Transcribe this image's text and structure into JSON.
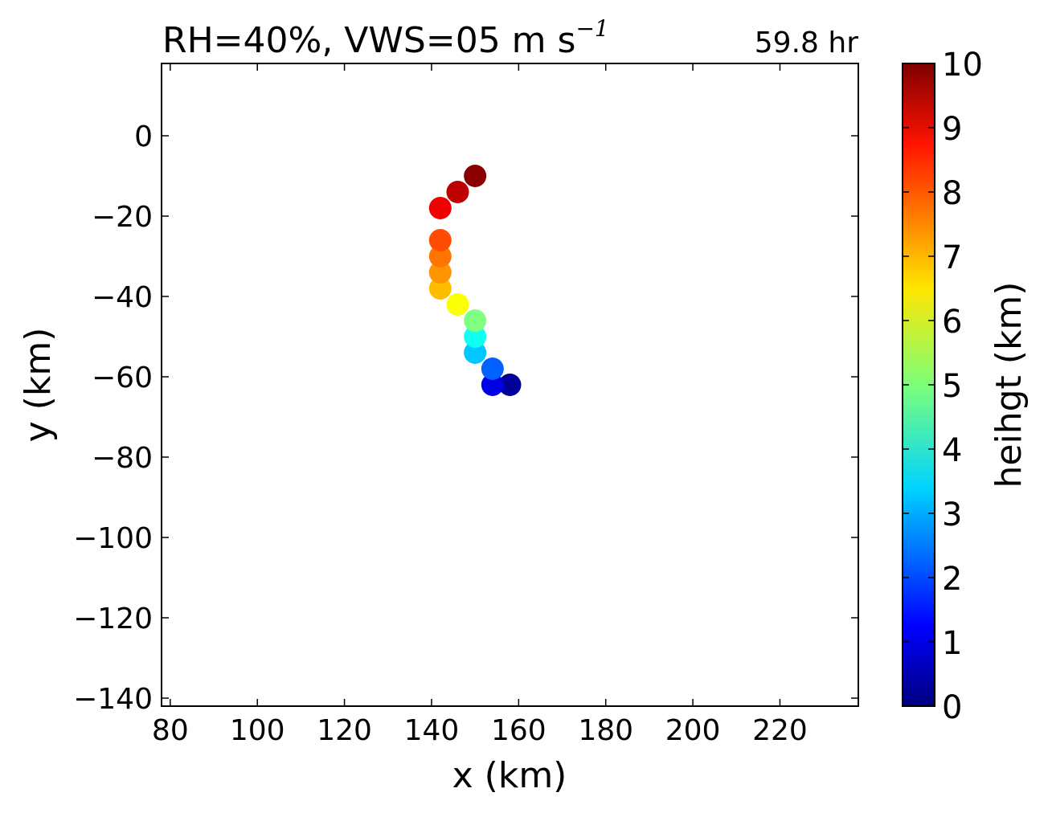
{
  "chart_data": {
    "type": "scatter",
    "title": {
      "main": "RH=40%, VWS=05 m s",
      "superscript": "−1"
    },
    "time_label": "59.8 hr",
    "time_label_color": "#0000ff",
    "xlabel": "x (km)",
    "ylabel": "y (km)",
    "xlim": [
      78,
      238
    ],
    "ylim": [
      -142,
      18
    ],
    "x_ticks": [
      80,
      100,
      120,
      140,
      160,
      180,
      200,
      220
    ],
    "x_tick_labels": [
      "80",
      "100",
      "120",
      "140",
      "160",
      "180",
      "200",
      "220"
    ],
    "y_ticks": [
      0,
      -20,
      -40,
      -60,
      -80,
      -100,
      -120,
      -140
    ],
    "y_tick_labels": [
      "0",
      "−20",
      "−40",
      "−60",
      "−80",
      "−100",
      "−120",
      "−140"
    ],
    "grid": false,
    "colorbar": {
      "label": "heihgt (km)",
      "range": [
        0,
        10
      ],
      "ticks": [
        0,
        1,
        2,
        3,
        4,
        5,
        6,
        7,
        8,
        9,
        10
      ],
      "tick_labels": [
        "0",
        "1",
        "2",
        "3",
        "4",
        "5",
        "6",
        "7",
        "8",
        "9",
        "10"
      ],
      "colormap": "jet"
    },
    "points": [
      {
        "x": 158,
        "y": -62,
        "height": 0.25
      },
      {
        "x": 154,
        "y": -62,
        "height": 1.0
      },
      {
        "x": 154,
        "y": -58,
        "height": 2.2
      },
      {
        "x": 150,
        "y": -54,
        "height": 3.2
      },
      {
        "x": 150,
        "y": -50,
        "height": 3.9
      },
      {
        "x": 150,
        "y": -46,
        "height": 5.0
      },
      {
        "x": 146,
        "y": -42,
        "height": 6.2
      },
      {
        "x": 142,
        "y": -38,
        "height": 6.9
      },
      {
        "x": 142,
        "y": -34,
        "height": 7.3
      },
      {
        "x": 142,
        "y": -30,
        "height": 7.6
      },
      {
        "x": 142,
        "y": -26,
        "height": 8.0
      },
      {
        "x": 142,
        "y": -18,
        "height": 8.9
      },
      {
        "x": 146,
        "y": -14,
        "height": 9.4
      },
      {
        "x": 150,
        "y": -10,
        "height": 9.9
      }
    ]
  }
}
